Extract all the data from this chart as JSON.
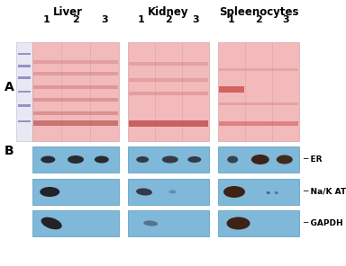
{
  "title_liver": "Liver",
  "title_kidney": "Kidney",
  "title_spleen": "Spleenocytes",
  "lane_labels": [
    "1",
    "2",
    "3"
  ],
  "panel_a_label": "A",
  "panel_b_label": "B",
  "wb_labels": [
    "ER",
    "Na/K ATPase",
    "GAPDH"
  ],
  "bg_color": "#ffffff",
  "gel_pink": "#f0b8b8",
  "gel_pink_light": "#f8d0d0",
  "marker_bg": "#e8e8f5",
  "marker_color": "#7777bb",
  "wb_bg": "#7fb8d8",
  "band_dark": "#1a1015",
  "band_brown": "#3a1a0a"
}
